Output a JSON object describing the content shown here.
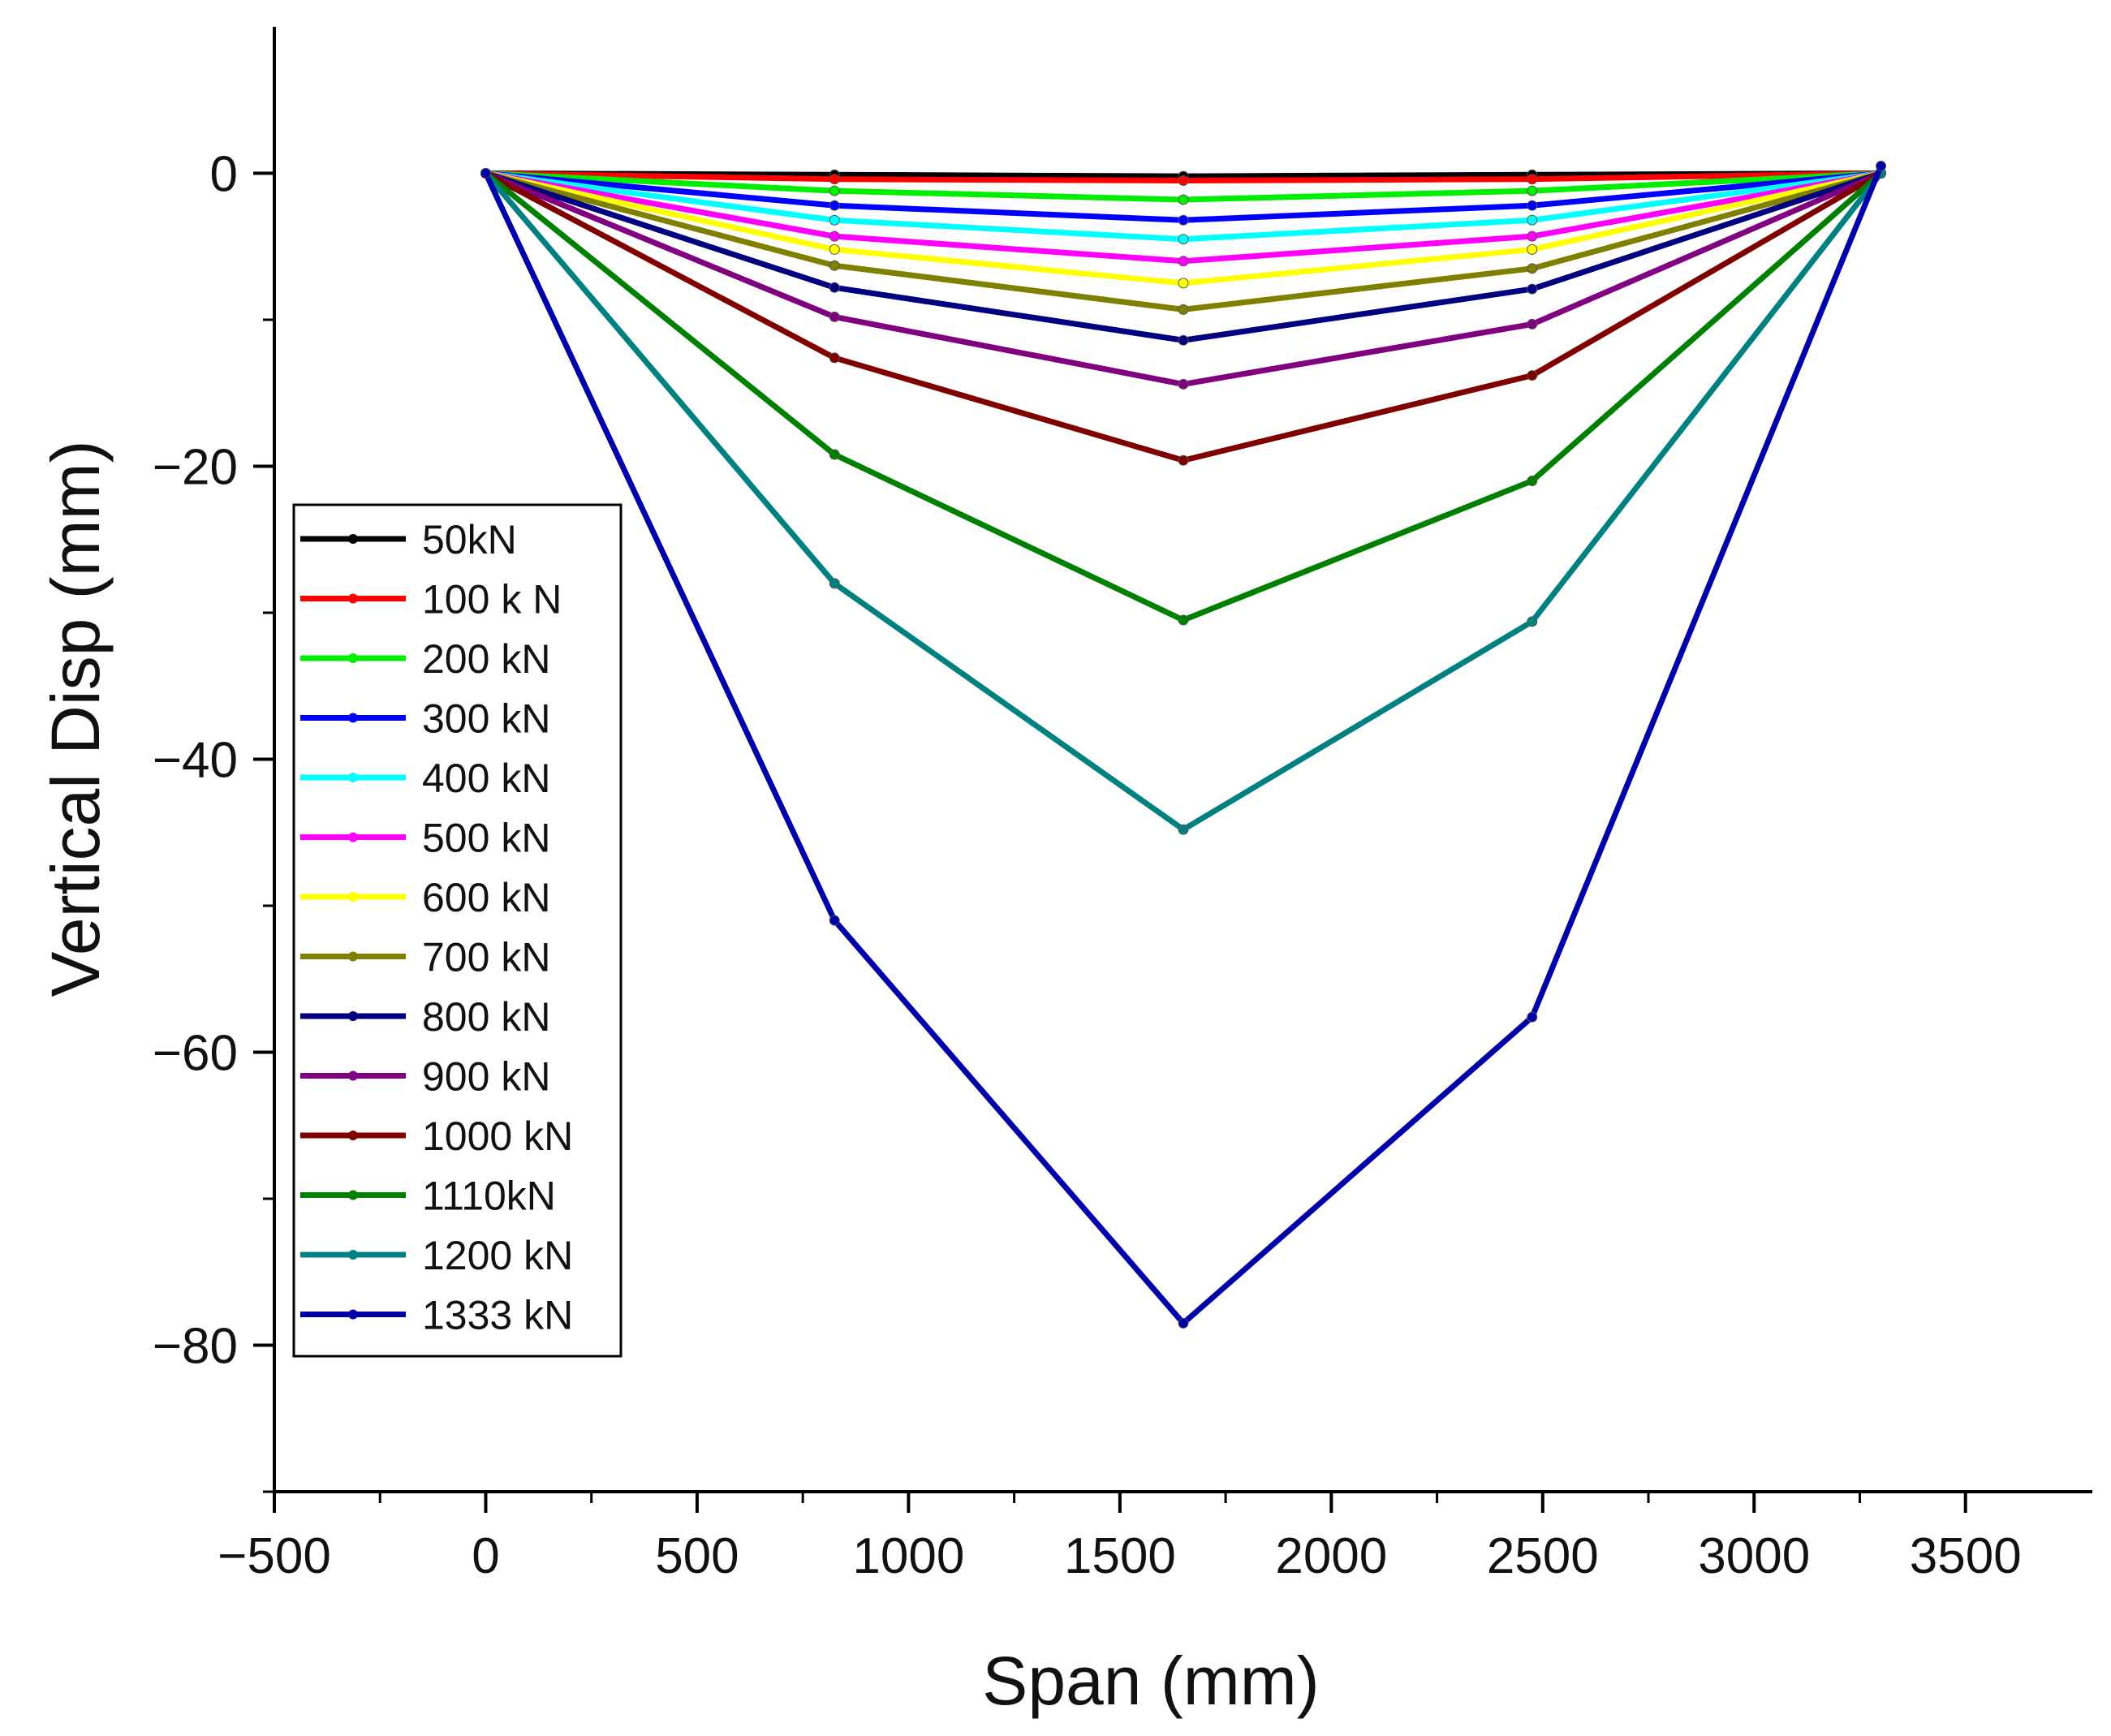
{
  "chart_data": {
    "type": "line",
    "title": "",
    "xlabel": "Span (mm)",
    "ylabel": "Vertical Disp (mm)",
    "xlim": [
      -500,
      3800
    ],
    "ylim": [
      -90,
      10
    ],
    "xticks": [
      -500,
      0,
      500,
      1000,
      1500,
      2000,
      2500,
      3000,
      3500
    ],
    "xtick_labels": [
      "−500",
      "0",
      "500",
      "1000",
      "1500",
      "2000",
      "2500",
      "3000",
      "3500"
    ],
    "yticks": [
      0,
      -20,
      -40,
      -60,
      -80
    ],
    "ytick_labels": [
      "0",
      "−20",
      "−40",
      "−60",
      "−80"
    ],
    "grid": false,
    "legend_position": "left-middle",
    "x": [
      0,
      825,
      1650,
      2475,
      3300
    ],
    "series": [
      {
        "name": "50kN",
        "color": "#000000",
        "values": [
          0,
          -0.1,
          -0.2,
          -0.1,
          0
        ]
      },
      {
        "name": "100 k N",
        "color": "#ff0000",
        "values": [
          0,
          -0.4,
          -0.5,
          -0.4,
          0
        ]
      },
      {
        "name": "200 kN",
        "color": "#00ee00",
        "values": [
          0,
          -1.2,
          -1.8,
          -1.2,
          0
        ]
      },
      {
        "name": "300 kN",
        "color": "#0000ff",
        "values": [
          0,
          -2.2,
          -3.2,
          -2.2,
          0
        ]
      },
      {
        "name": "400 kN",
        "color": "#00ffff",
        "values": [
          0,
          -3.2,
          -4.5,
          -3.2,
          0
        ]
      },
      {
        "name": "500 kN",
        "color": "#ff00ff",
        "values": [
          0,
          -4.3,
          -6.0,
          -4.3,
          0
        ]
      },
      {
        "name": "600 kN",
        "color": "#ffff00",
        "values": [
          0,
          -5.2,
          -7.5,
          -5.2,
          0
        ]
      },
      {
        "name": "700 kN",
        "color": "#808000",
        "values": [
          0,
          -6.3,
          -9.3,
          -6.5,
          0
        ]
      },
      {
        "name": "800 kN",
        "color": "#000080",
        "values": [
          0,
          -7.8,
          -11.4,
          -7.9,
          0
        ]
      },
      {
        "name": "900 kN",
        "color": "#800080",
        "values": [
          0,
          -9.8,
          -14.4,
          -10.3,
          0
        ]
      },
      {
        "name": "1000 kN",
        "color": "#800000",
        "values": [
          0,
          -12.6,
          -19.6,
          -13.8,
          0
        ]
      },
      {
        "name": "1110kN",
        "color": "#008000",
        "values": [
          0,
          -19.2,
          -30.5,
          -21.0,
          0
        ]
      },
      {
        "name": "1200 kN",
        "color": "#008080",
        "values": [
          0,
          -28.0,
          -44.8,
          -30.6,
          0
        ]
      },
      {
        "name": "1333 kN",
        "color": "#0000aa",
        "values": [
          0,
          -51.0,
          -78.5,
          -57.6,
          0.5
        ]
      }
    ]
  }
}
